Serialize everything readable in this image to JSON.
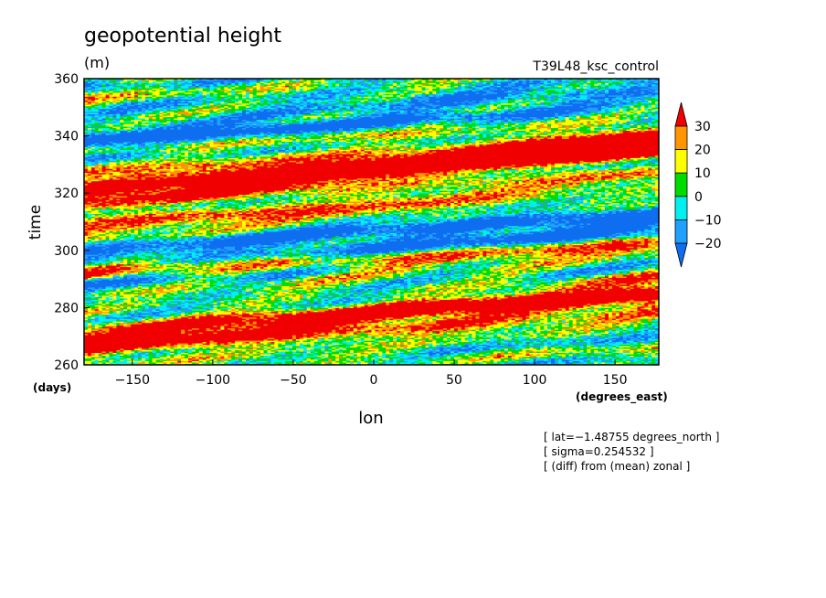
{
  "chart_data": {
    "type": "heatmap",
    "title": "geopotential height",
    "units": "(m)",
    "run_label": "T39L48_ksc_control",
    "xlabel": "lon",
    "xunits": "(degrees_east)",
    "ylabel": "time",
    "yunits": "(days)",
    "xlim": [
      -180,
      177.1875
    ],
    "ylim": [
      260,
      360
    ],
    "xticks": [
      -150,
      -100,
      -50,
      0,
      50,
      100,
      150
    ],
    "yticks": [
      260,
      280,
      300,
      320,
      340,
      360
    ],
    "xtick_labels": [
      "−150",
      "−100",
      "−50",
      "0",
      "50",
      "100",
      "150"
    ],
    "ytick_labels": [
      "260",
      "280",
      "300",
      "320",
      "340",
      "360"
    ],
    "colorbar": {
      "levels": [
        -20,
        -10,
        0,
        10,
        20,
        30
      ],
      "labels": [
        "−20",
        "−10",
        "0",
        "10",
        "20",
        "30"
      ],
      "colors": [
        "#0f6ef0",
        "#1fa0ff",
        "#00f0f0",
        "#00dc00",
        "#ffff00",
        "#ff9600",
        "#f00000"
      ],
      "extend": "both"
    },
    "notes": [
      "[ lat=−1.48755 degrees_north ]",
      "[ sigma=0.254532 ]",
      "[ (diff) from (mean) zonal ]"
    ]
  }
}
